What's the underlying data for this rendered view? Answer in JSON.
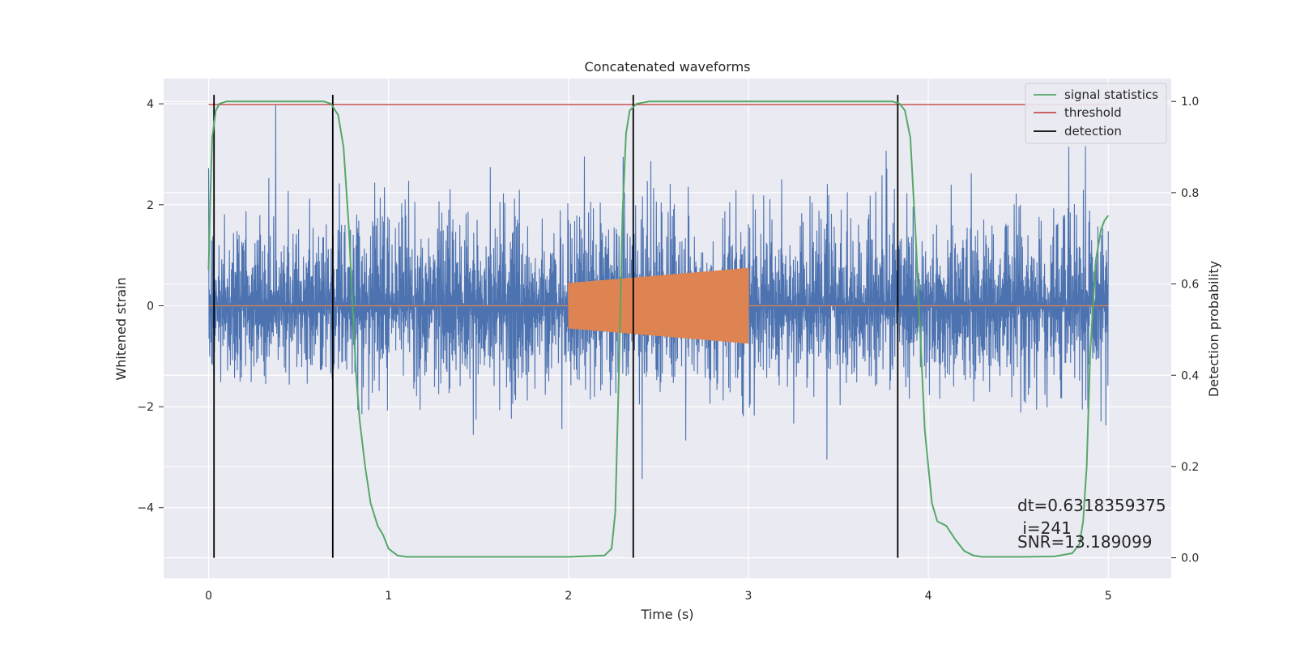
{
  "chart_data": {
    "type": "line",
    "title": "Concatenated waveforms",
    "xlabel": "Time (s)",
    "ylabel": "Whitened strain",
    "ylabel_right": "Detection probability",
    "xlim": [
      -0.25,
      5.35
    ],
    "ylim": [
      -5.4,
      4.5
    ],
    "ylim_right": [
      -0.045,
      1.05
    ],
    "x_ticks": [
      0,
      1,
      2,
      3,
      4,
      5
    ],
    "y_ticks": [
      -4,
      -2,
      0,
      2,
      4
    ],
    "y_ticks_right": [
      0.0,
      0.2,
      0.4,
      0.6,
      0.8,
      1.0
    ],
    "x_tick_labels": [
      "0",
      "1",
      "2",
      "3",
      "4",
      "5"
    ],
    "y_tick_labels": [
      "−4",
      "−2",
      "0",
      "2",
      "4"
    ],
    "y_tick_labels_right": [
      "0.0",
      "0.2",
      "0.4",
      "0.6",
      "0.8",
      "1.0"
    ],
    "grid": true,
    "legend_position": "top-right",
    "colors": {
      "background": "#eaeaf2",
      "grid": "#ffffff",
      "noise": "#4c72b0",
      "injection": "#dd8452",
      "signal_statistics": "#55a868",
      "threshold": "#c44e52",
      "detection": "#000000"
    },
    "series": [
      {
        "name": "signal statistics",
        "axis": "right",
        "x": [
          0.0,
          0.01,
          0.02,
          0.04,
          0.06,
          0.1,
          0.2,
          0.5,
          0.64,
          0.68,
          0.72,
          0.75,
          0.78,
          0.8,
          0.82,
          0.84,
          0.87,
          0.9,
          0.94,
          0.97,
          1.0,
          1.05,
          1.1,
          1.5,
          2.0,
          2.2,
          2.24,
          2.26,
          2.28,
          2.3,
          2.32,
          2.34,
          2.38,
          2.45,
          2.6,
          3.5,
          3.8,
          3.84,
          3.87,
          3.9,
          3.93,
          3.96,
          3.98,
          4.0,
          4.02,
          4.05,
          4.1,
          4.15,
          4.2,
          4.25,
          4.3,
          4.5,
          4.7,
          4.8,
          4.84,
          4.86,
          4.88,
          4.9,
          4.93,
          4.96,
          4.98,
          5.0
        ],
        "y": [
          0.63,
          0.8,
          0.92,
          0.98,
          0.995,
          1.0,
          1.0,
          1.0,
          1.0,
          0.995,
          0.97,
          0.9,
          0.72,
          0.55,
          0.4,
          0.3,
          0.2,
          0.12,
          0.07,
          0.05,
          0.02,
          0.005,
          0.002,
          0.002,
          0.002,
          0.005,
          0.02,
          0.1,
          0.4,
          0.75,
          0.93,
          0.98,
          0.995,
          1.0,
          1.0,
          1.0,
          1.0,
          0.995,
          0.98,
          0.92,
          0.7,
          0.45,
          0.28,
          0.2,
          0.12,
          0.08,
          0.07,
          0.04,
          0.015,
          0.005,
          0.002,
          0.002,
          0.003,
          0.01,
          0.03,
          0.08,
          0.2,
          0.45,
          0.65,
          0.72,
          0.74,
          0.75
        ]
      },
      {
        "name": "threshold",
        "axis": "right",
        "x": [
          0,
          5
        ],
        "y": [
          0.993,
          0.993
        ]
      },
      {
        "name": "detection",
        "axis": "right",
        "type": "vlines",
        "x": [
          0.03,
          0.69,
          2.36,
          3.83
        ],
        "y_range": [
          0.0,
          1.0
        ]
      },
      {
        "name": "",
        "axis": "left",
        "description_values": "noise",
        "x_range": [
          0,
          5
        ],
        "amplitude_typical": 1.3
      },
      {
        "name": "",
        "axis": "left",
        "description_values": "injection",
        "x_range": [
          2.0,
          3.0
        ],
        "envelope_start": 0.45,
        "envelope_end": 0.75
      }
    ],
    "legend": [
      "signal statistics",
      "threshold",
      "detection"
    ],
    "annotations": [
      "dt=0.6318359375",
      " i=241",
      "SNR=13.189099"
    ]
  }
}
